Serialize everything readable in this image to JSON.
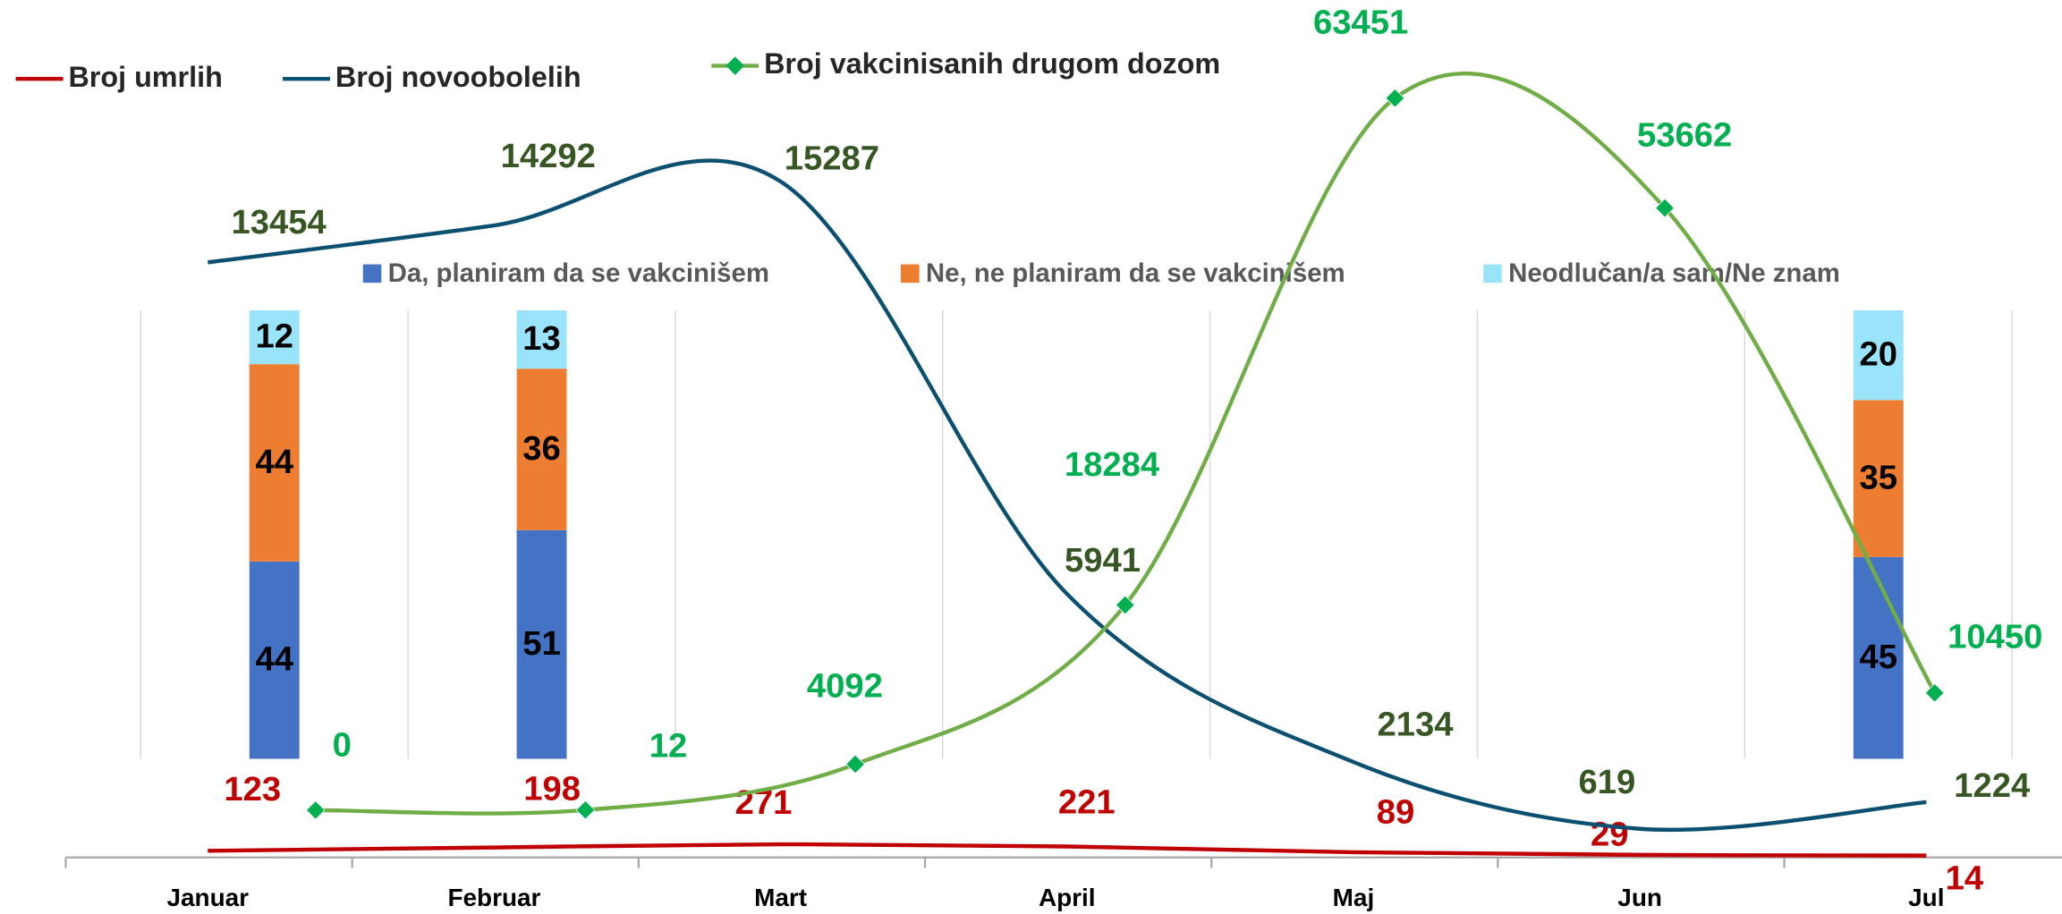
{
  "chart_data": [
    {
      "type": "line",
      "categories": [
        "Januar",
        "Februar",
        "Mart",
        "April",
        "Maj",
        "Jun",
        "Jul"
      ],
      "series": [
        {
          "name": "Broj umrlih",
          "color": "#c00000",
          "label_color": "#c00000",
          "values": [
            123,
            198,
            271,
            221,
            89,
            29,
            14
          ],
          "ylim": [
            0,
            19600
          ]
        },
        {
          "name": "Broj novoobolelih",
          "color": "#0b5070",
          "label_color": "#375623",
          "values": [
            13454,
            14292,
            15287,
            5941,
            2134,
            619,
            1224
          ],
          "ylim": [
            0,
            19400
          ]
        },
        {
          "name": "Broj vakcinisanih drugom dozom",
          "color": "#70ad47",
          "label_color": "#00b050",
          "marker_color": "#00b050",
          "marker": "diamond",
          "values": [
            0,
            12,
            4092,
            18284,
            63451,
            53662,
            10450
          ],
          "ylim": [
            -4100,
            72200
          ]
        }
      ],
      "smooth": true
    },
    {
      "type": "bar",
      "stacked": true,
      "categories": [
        null,
        null,
        null,
        null,
        null,
        null,
        null
      ],
      "series": [
        {
          "name": "Da, planiram da se vakcinišem",
          "color": "#4472c4",
          "values": [
            44,
            51,
            null,
            null,
            null,
            null,
            45
          ]
        },
        {
          "name": "Ne, ne planiram da se vakcinišem",
          "color": "#ed7d31",
          "values": [
            44,
            36,
            null,
            null,
            null,
            null,
            35
          ]
        },
        {
          "name": "Neodlučan/a sam/Ne znam",
          "color": "#99e3fb",
          "values": [
            12,
            13,
            null,
            null,
            null,
            null,
            20
          ]
        }
      ],
      "ylim": [
        0,
        100
      ],
      "grid": true
    }
  ]
}
